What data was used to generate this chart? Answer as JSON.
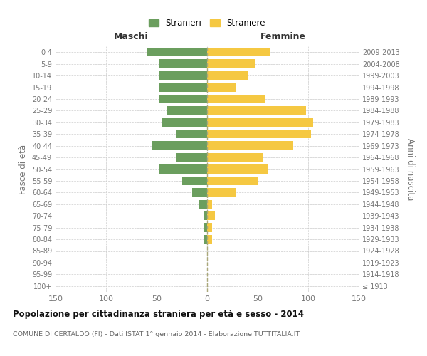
{
  "age_groups": [
    "100+",
    "95-99",
    "90-94",
    "85-89",
    "80-84",
    "75-79",
    "70-74",
    "65-69",
    "60-64",
    "55-59",
    "50-54",
    "45-49",
    "40-44",
    "35-39",
    "30-34",
    "25-29",
    "20-24",
    "15-19",
    "10-14",
    "5-9",
    "0-4"
  ],
  "birth_years": [
    "≤ 1913",
    "1914-1918",
    "1919-1923",
    "1924-1928",
    "1929-1933",
    "1934-1938",
    "1939-1943",
    "1944-1948",
    "1949-1953",
    "1954-1958",
    "1959-1963",
    "1964-1968",
    "1969-1973",
    "1974-1978",
    "1979-1983",
    "1984-1988",
    "1989-1993",
    "1994-1998",
    "1999-2003",
    "2004-2008",
    "2009-2013"
  ],
  "males": [
    0,
    0,
    0,
    0,
    3,
    3,
    3,
    8,
    15,
    25,
    47,
    30,
    55,
    30,
    45,
    40,
    47,
    48,
    48,
    47,
    60
  ],
  "females": [
    0,
    0,
    0,
    0,
    5,
    5,
    8,
    5,
    28,
    50,
    60,
    55,
    85,
    103,
    105,
    98,
    58,
    28,
    40,
    48,
    63
  ],
  "male_color": "#6b9e5e",
  "female_color": "#f5c842",
  "grid_color": "#cccccc",
  "title": "Popolazione per cittadinanza straniera per età e sesso - 2014",
  "subtitle": "COMUNE DI CERTALDO (FI) - Dati ISTAT 1° gennaio 2014 - Elaborazione TUTTITALIA.IT",
  "header_left": "Maschi",
  "header_right": "Femmine",
  "ylabel_left": "Fasce di età",
  "ylabel_right": "Anni di nascita",
  "legend_male": "Stranieri",
  "legend_female": "Straniere",
  "xlim": 150,
  "bar_height": 0.75
}
